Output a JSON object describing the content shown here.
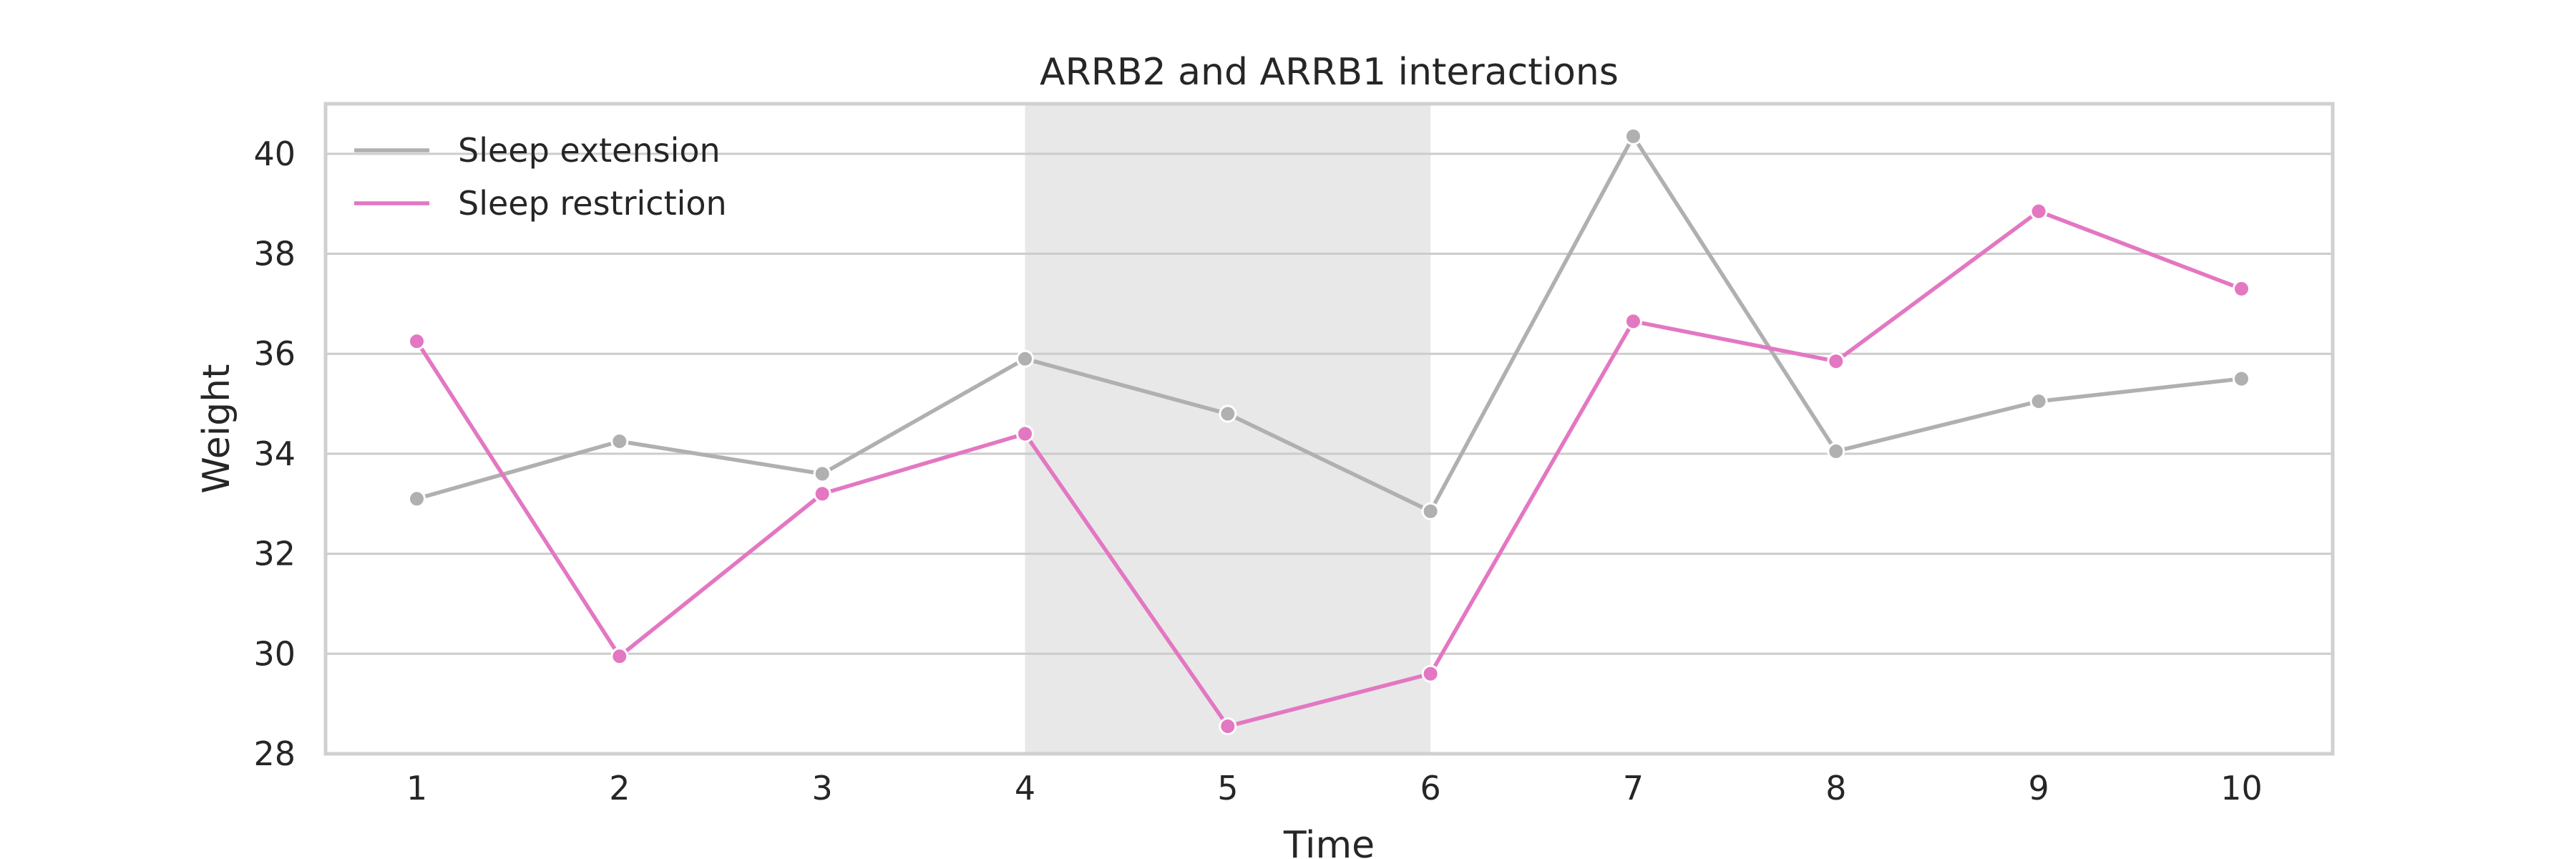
{
  "chart_data": {
    "type": "line",
    "title": "ARRB2 and ARRB1 interactions",
    "xlabel": "Time",
    "ylabel": "Weight",
    "x": [
      1,
      2,
      3,
      4,
      5,
      6,
      7,
      8,
      9,
      10
    ],
    "ylim": [
      28,
      41
    ],
    "yticks": [
      28,
      30,
      32,
      34,
      36,
      38,
      40
    ],
    "grid": "horizontal",
    "legend_position": "top-left",
    "shaded_region": {
      "x_start": 4,
      "x_end": 6,
      "color": "#e8e8e8"
    },
    "series": [
      {
        "name": "Sleep extension",
        "color": "#b0b0b0",
        "values": [
          33.1,
          34.25,
          33.6,
          35.9,
          34.8,
          32.85,
          40.35,
          34.05,
          35.05,
          35.5
        ]
      },
      {
        "name": "Sleep restriction",
        "color": "#e377c2",
        "values": [
          36.25,
          29.95,
          33.2,
          34.4,
          28.55,
          29.6,
          36.65,
          35.85,
          38.85,
          37.3
        ]
      }
    ]
  }
}
